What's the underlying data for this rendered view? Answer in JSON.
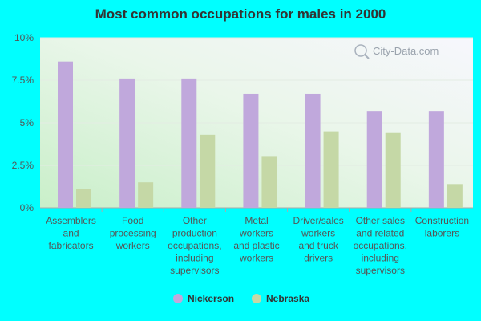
{
  "chart_data": {
    "type": "bar",
    "title": "Most common occupations for males in 2000",
    "categories": [
      [
        "Assemblers",
        "and",
        "fabricators"
      ],
      [
        "Food",
        "processing",
        "workers"
      ],
      [
        "Other",
        "production",
        "occupations,",
        "including",
        "supervisors"
      ],
      [
        "Metal",
        "workers",
        "and plastic",
        "workers"
      ],
      [
        "Driver/sales",
        "workers",
        "and truck",
        "drivers"
      ],
      [
        "Other sales",
        "and related",
        "occupations,",
        "including",
        "supervisors"
      ],
      [
        "Construction",
        "laborers"
      ]
    ],
    "series": [
      {
        "name": "Nickerson",
        "color": "#c0a8dc",
        "values": [
          8.6,
          7.6,
          7.6,
          6.7,
          6.7,
          5.7,
          5.7
        ]
      },
      {
        "name": "Nebraska",
        "color": "#c5d8a6",
        "values": [
          1.1,
          1.5,
          4.3,
          3.0,
          4.5,
          4.4,
          1.4
        ]
      }
    ],
    "yticks": [
      0,
      2.5,
      5,
      7.5,
      10
    ],
    "ytick_labels": [
      "0%",
      "2.5%",
      "5%",
      "7.5%",
      "10%"
    ],
    "ylim": [
      0,
      10
    ],
    "xlabel": "",
    "ylabel": "",
    "grid": true,
    "legend_position": "bottom"
  },
  "watermark": "City-Data.com"
}
